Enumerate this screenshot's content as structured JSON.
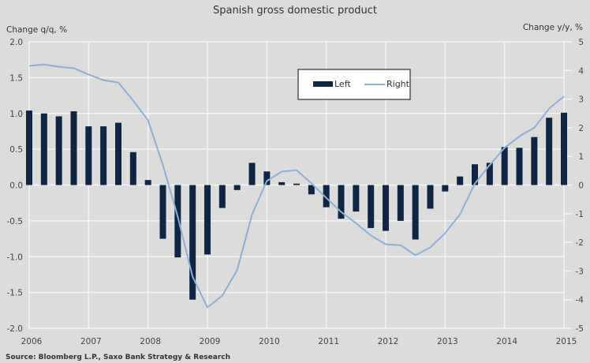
{
  "chart_data": {
    "type": "bar+line",
    "title": "Spanish gross domestic product",
    "ylabel_left": "Change q/q, %",
    "ylabel_right": "Change y/y, %",
    "source": "Source: Bloomberg L.P., Saxo Bank Strategy & Research",
    "x_ticks": [
      "2006",
      "2007",
      "2008",
      "2009",
      "2010",
      "2011",
      "2012",
      "2013",
      "2014",
      "2015"
    ],
    "y_left_ticks": [
      "2.0",
      "1.5",
      "1.0",
      "0.5",
      "0.0",
      "-0.5",
      "-1.0",
      "-1.5",
      "-2.0"
    ],
    "y_right_ticks": [
      "5",
      "4",
      "3",
      "2",
      "1",
      "0",
      "-1",
      "-2",
      "-3",
      "-4",
      "-5"
    ],
    "ylim_left": [
      -2.0,
      2.0
    ],
    "ylim_right": [
      -5,
      5
    ],
    "xlim": [
      2006,
      2015
    ],
    "grid": true,
    "legend": {
      "placement": "top-center",
      "entries": [
        "Left",
        "Right"
      ]
    },
    "x": [
      2006.0,
      2006.25,
      2006.5,
      2006.75,
      2007.0,
      2007.25,
      2007.5,
      2007.75,
      2008.0,
      2008.25,
      2008.5,
      2008.75,
      2009.0,
      2009.25,
      2009.5,
      2009.75,
      2010.0,
      2010.25,
      2010.5,
      2010.75,
      2011.0,
      2011.25,
      2011.5,
      2011.75,
      2012.0,
      2012.25,
      2012.5,
      2012.75,
      2013.0,
      2013.25,
      2013.5,
      2013.75,
      2014.0,
      2014.25,
      2014.5,
      2014.75,
      2015.0
    ],
    "series": [
      {
        "name": "Left",
        "type": "bar",
        "axis": "left",
        "color": "#0f2544",
        "values": [
          1.04,
          1.0,
          0.96,
          1.03,
          0.82,
          0.82,
          0.87,
          0.46,
          0.07,
          -0.75,
          -1.01,
          -1.6,
          -0.97,
          -0.32,
          -0.07,
          0.31,
          0.19,
          0.04,
          0.02,
          -0.13,
          -0.31,
          -0.47,
          -0.37,
          -0.6,
          -0.64,
          -0.5,
          -0.76,
          -0.33,
          -0.09,
          0.12,
          0.29,
          0.31,
          0.53,
          0.52,
          0.67,
          0.94,
          1.01
        ]
      },
      {
        "name": "Right",
        "type": "line",
        "axis": "right",
        "color": "#8fb0d6",
        "values": [
          4.16,
          4.21,
          4.13,
          4.08,
          3.86,
          3.66,
          3.58,
          2.95,
          2.26,
          0.7,
          -1.1,
          -3.2,
          -4.27,
          -3.86,
          -2.97,
          -1.03,
          0.14,
          0.47,
          0.52,
          0.06,
          -0.45,
          -0.94,
          -1.33,
          -1.76,
          -2.07,
          -2.1,
          -2.45,
          -2.18,
          -1.68,
          -1.02,
          0.05,
          0.7,
          1.3,
          1.7,
          2.0,
          2.67,
          3.1
        ]
      }
    ]
  }
}
